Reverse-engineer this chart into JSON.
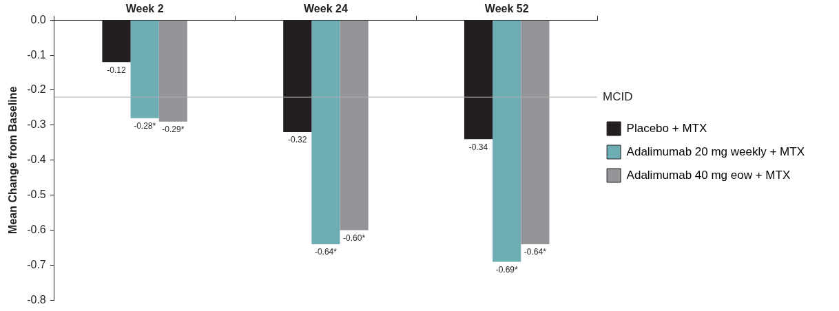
{
  "chart_data": {
    "type": "bar",
    "ylabel": "Mean Change from Baseline",
    "categories": [
      "Week 2",
      "Week 24",
      "Week 52"
    ],
    "series": [
      {
        "name": "Placebo + MTX",
        "color": "#231f20",
        "values": [
          -0.12,
          -0.32,
          -0.34
        ],
        "value_labels": [
          "-0.12",
          "-0.32",
          "-0.34"
        ]
      },
      {
        "name": "Adalimumab 20 mg weekly + MTX",
        "color": "#6fadb5",
        "values": [
          -0.28,
          -0.64,
          -0.69
        ],
        "value_labels": [
          "-0.28*",
          "-0.64*",
          "-0.69*"
        ]
      },
      {
        "name": "Adalimumab 40 mg eow + MTX",
        "color": "#939598",
        "values": [
          -0.29,
          -0.6,
          -0.64
        ],
        "value_labels": [
          "-0.29*",
          "-0.60*",
          "-0.64*"
        ]
      }
    ],
    "ylim": [
      -0.8,
      0
    ],
    "yticks": [
      {
        "value": 0,
        "label": "0.0"
      },
      {
        "value": -0.1,
        "label": "-0.1"
      },
      {
        "value": -0.2,
        "label": "-0.2"
      },
      {
        "value": -0.3,
        "label": "-0.3"
      },
      {
        "value": -0.4,
        "label": "-0.4"
      },
      {
        "value": -0.5,
        "label": "-0.5"
      },
      {
        "value": -0.6,
        "label": "-0.6"
      },
      {
        "value": -0.7,
        "label": "-0.7"
      },
      {
        "value": -0.8,
        "label": "-0.8"
      }
    ],
    "ref_lines": [
      {
        "axis": "y",
        "value": -0.22,
        "label": "MCID",
        "color": "#b0b0b0"
      }
    ],
    "grid": false,
    "legend": "right"
  }
}
